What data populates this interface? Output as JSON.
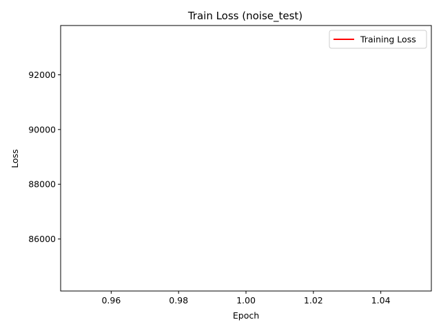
{
  "chart_data": {
    "type": "line",
    "title": "Train Loss (noise_test)",
    "xlabel": "Epoch",
    "ylabel": "Loss",
    "xlim": [
      0.945,
      1.055
    ],
    "ylim": [
      84100,
      93800
    ],
    "x_ticks": [
      0.96,
      0.98,
      1.0,
      1.02,
      1.04
    ],
    "x_tick_labels": [
      "0.96",
      "0.98",
      "1.00",
      "1.02",
      "1.04"
    ],
    "y_ticks": [
      86000,
      88000,
      90000,
      92000
    ],
    "y_tick_labels": [
      "86000",
      "88000",
      "90000",
      "92000"
    ],
    "grid": false,
    "legend_position": "top-right",
    "series": [
      {
        "name": "Training Loss",
        "color": "#ff0000",
        "x": [],
        "y": []
      }
    ]
  }
}
